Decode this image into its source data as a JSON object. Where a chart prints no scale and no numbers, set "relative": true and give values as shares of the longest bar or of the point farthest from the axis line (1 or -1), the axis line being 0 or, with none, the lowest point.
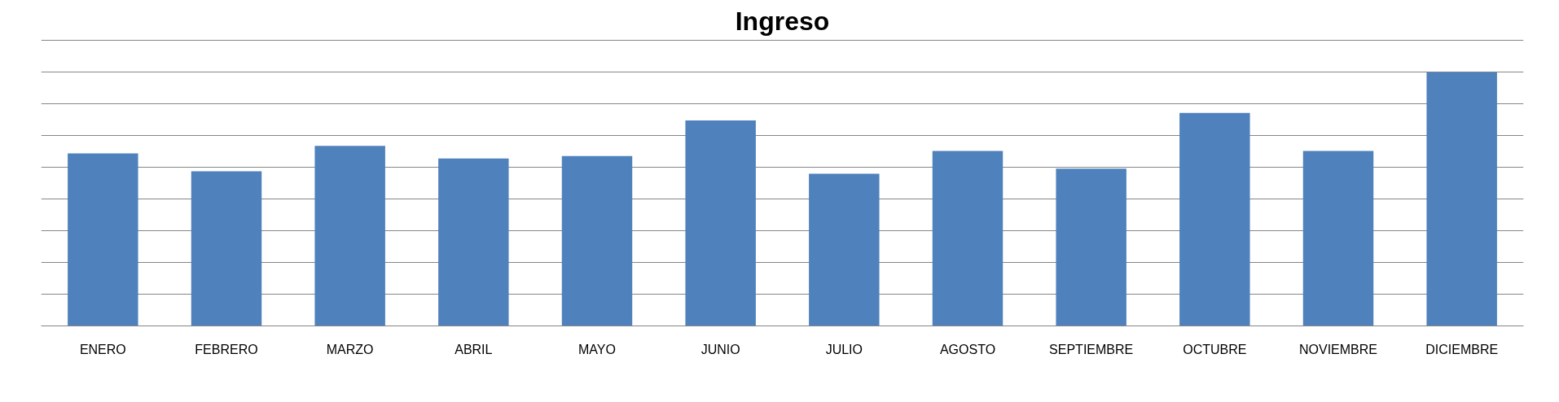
{
  "chart_data": {
    "type": "bar",
    "title": "Ingreso",
    "relative": true,
    "grid": "y",
    "categories": [
      "ENERO",
      "FEBRERO",
      "MARZO",
      "ABRIL",
      "MAYO",
      "JUNIO",
      "JULIO",
      "AGOSTO",
      "SEPTIEMBRE",
      "OCTUBRE",
      "NOVIEMBRE",
      "DICIEMBRE"
    ],
    "values": [
      0.68,
      0.61,
      0.71,
      0.66,
      0.67,
      0.81,
      0.6,
      0.69,
      0.62,
      0.84,
      0.69,
      1
    ],
    "color": "#4f81bd"
  }
}
